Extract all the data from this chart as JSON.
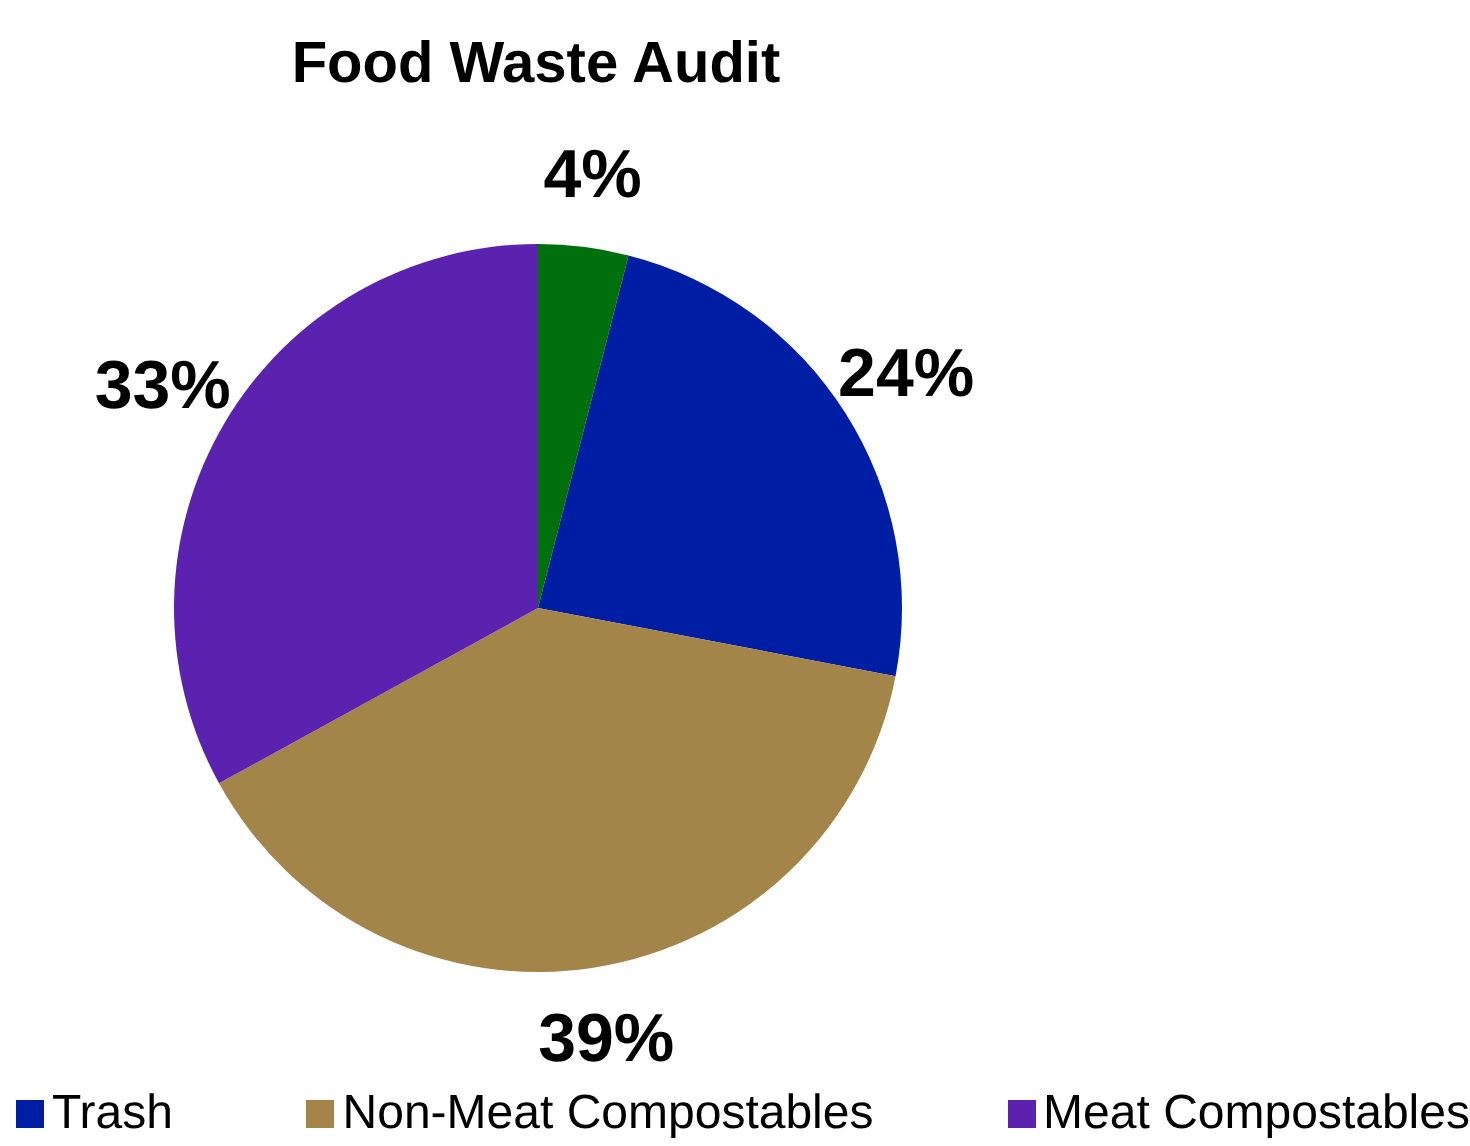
{
  "chart_data": {
    "type": "pie",
    "title": "Food Waste Audit",
    "categories": [
      null,
      "Trash",
      "Non-Meat Compostables",
      "Meat Compostables"
    ],
    "values": [
      4,
      24,
      39,
      33
    ],
    "value_labels": [
      "4%",
      "24%",
      "39%",
      "33%"
    ],
    "colors": [
      "#00700f",
      "#001ea3",
      "#a3854a",
      "#5a22ae"
    ],
    "legend": "bottom"
  }
}
